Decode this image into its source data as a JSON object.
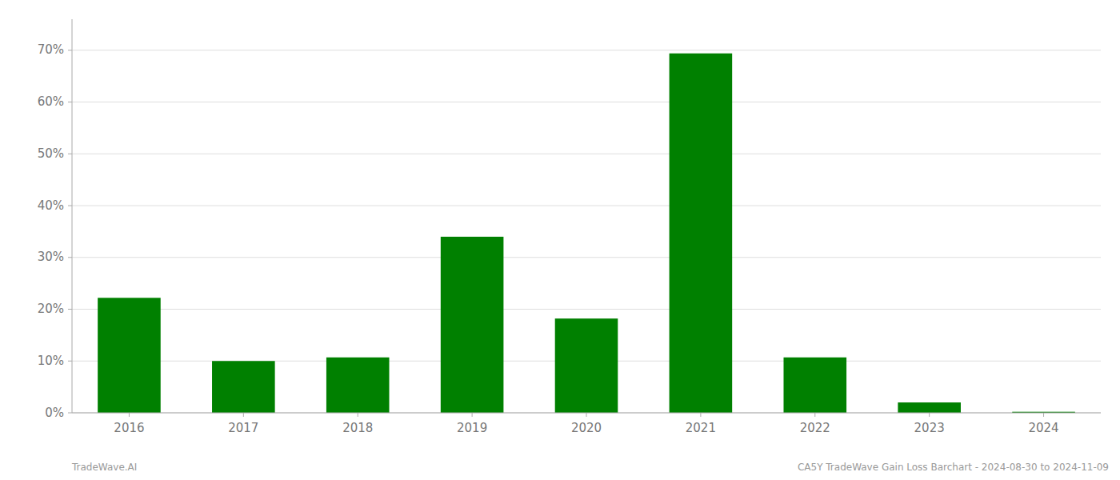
{
  "chart_data": {
    "type": "bar",
    "categories": [
      "2016",
      "2017",
      "2018",
      "2019",
      "2020",
      "2021",
      "2022",
      "2023",
      "2024"
    ],
    "values": [
      0.222,
      0.1,
      0.107,
      0.34,
      0.182,
      0.694,
      0.107,
      0.02,
      0.002
    ],
    "color": "#008000",
    "ylim": [
      0,
      0.76
    ],
    "yticks": [
      {
        "value": 0.0,
        "label": "0%"
      },
      {
        "value": 0.1,
        "label": "10%"
      },
      {
        "value": 0.2,
        "label": "20%"
      },
      {
        "value": 0.3,
        "label": "30%"
      },
      {
        "value": 0.4,
        "label": "40%"
      },
      {
        "value": 0.5,
        "label": "50%"
      },
      {
        "value": 0.6,
        "label": "60%"
      },
      {
        "value": 0.7,
        "label": "70%"
      }
    ],
    "grid": true,
    "annotations": [
      "TradeWave.AI",
      "CA5Y TradeWave Gain Loss Barchart - 2024-08-30 to 2024-11-09"
    ]
  }
}
